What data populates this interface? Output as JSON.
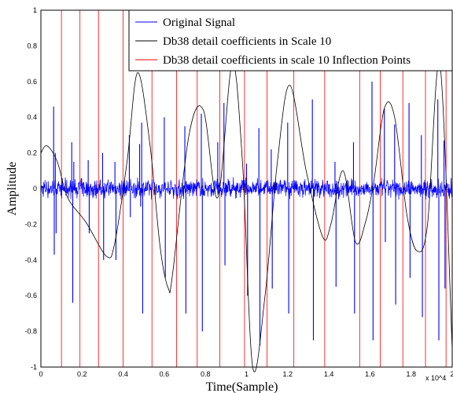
{
  "chart_data": {
    "type": "line",
    "xlabel": "Time(Sample)",
    "ylabel": "Amplitude",
    "x_exponent_label": "x 10^4",
    "xlim": [
      0,
      2
    ],
    "ylim": [
      -1,
      1
    ],
    "xticks": [
      "0",
      "0.2",
      "0.4",
      "0.6",
      "0.8",
      "1",
      "1.2",
      "1.4",
      "1.6",
      "1.8",
      "2"
    ],
    "yticks": [
      "-1",
      "-0.8",
      "-0.6",
      "-0.4",
      "-0.2",
      "0",
      "0.2",
      "0.4",
      "0.6",
      "0.8",
      "1"
    ],
    "grid": false,
    "legend_position": "top-right",
    "series": [
      {
        "name": "Original Signal",
        "color": "#0000ff",
        "style": "noisy spikes",
        "spikes": [
          [
            0.062,
            0.46
          ],
          [
            0.065,
            -0.37
          ],
          [
            0.07,
            0.2
          ],
          [
            0.074,
            -0.25
          ],
          [
            0.15,
            0.26
          ],
          [
            0.155,
            -0.64
          ],
          [
            0.16,
            0.15
          ],
          [
            0.23,
            0.16
          ],
          [
            0.235,
            -0.25
          ],
          [
            0.3,
            0.2
          ],
          [
            0.305,
            -0.4
          ],
          [
            0.36,
            0.15
          ],
          [
            0.365,
            -0.4
          ],
          [
            0.43,
            0.3
          ],
          [
            0.435,
            -0.16
          ],
          [
            0.48,
            0.25
          ],
          [
            0.485,
            -0.1
          ],
          [
            0.49,
            0.37
          ],
          [
            0.495,
            -0.7
          ],
          [
            0.6,
            0.4
          ],
          [
            0.605,
            -0.5
          ],
          [
            0.7,
            0.35
          ],
          [
            0.705,
            -0.7
          ],
          [
            0.78,
            0.42
          ],
          [
            0.785,
            -0.8
          ],
          [
            0.86,
            0.26
          ],
          [
            0.89,
            0.48
          ],
          [
            0.895,
            -0.43
          ],
          [
            1.0,
            0.14
          ],
          [
            1.005,
            -0.6
          ],
          [
            1.06,
            0.34
          ],
          [
            1.065,
            -0.88
          ],
          [
            1.12,
            0.22
          ],
          [
            1.125,
            -0.56
          ],
          [
            1.2,
            0.37
          ],
          [
            1.205,
            -0.7
          ],
          [
            1.32,
            0.5
          ],
          [
            1.325,
            -0.85
          ],
          [
            1.43,
            0.15
          ],
          [
            1.435,
            -0.55
          ],
          [
            1.52,
            0.26
          ],
          [
            1.525,
            -0.7
          ],
          [
            1.61,
            0.6
          ],
          [
            1.615,
            -0.85
          ],
          [
            1.67,
            0.45
          ],
          [
            1.675,
            -0.3
          ],
          [
            1.72,
            0.36
          ],
          [
            1.725,
            -0.65
          ],
          [
            1.79,
            0.48
          ],
          [
            1.795,
            -0.5
          ],
          [
            1.85,
            0.3
          ],
          [
            1.855,
            -0.72
          ],
          [
            1.93,
            0.5
          ],
          [
            1.935,
            -0.85
          ],
          [
            1.96,
            0.27
          ],
          [
            1.965,
            -0.56
          ]
        ],
        "noise_amplitude": 0.05
      },
      {
        "name": "Db38 detail coefficients in Scale 10",
        "color": "#000000",
        "x": [
          0,
          0.03,
          0.08,
          0.13,
          0.22,
          0.32,
          0.36,
          0.42,
          0.47,
          0.53,
          0.58,
          0.62,
          0.64,
          0.72,
          0.79,
          0.86,
          0.93,
          0.98,
          1.03,
          1.09,
          1.15,
          1.21,
          1.29,
          1.37,
          1.41,
          1.47,
          1.53,
          1.58,
          1.62,
          1.67,
          1.72,
          1.78,
          1.83,
          1.88,
          1.94,
          2.0
        ],
        "values": [
          0.2,
          0.24,
          0.15,
          -0.05,
          -0.19,
          -0.38,
          -0.3,
          0.16,
          0.65,
          0.25,
          -0.33,
          -0.56,
          -0.48,
          0.3,
          0.44,
          -0.05,
          0.7,
          0.15,
          -1.0,
          -0.6,
          0.15,
          0.58,
          0.1,
          -0.27,
          -0.2,
          0.1,
          -0.3,
          -0.18,
          0.05,
          0.45,
          0.4,
          -0.15,
          -0.35,
          -0.2,
          0.7,
          -0.9
        ]
      },
      {
        "name": "Db38 detail coefficients in scale 10 Inflection Points",
        "color": "#ff0000",
        "style": "vertical lines",
        "x": [
          0.1,
          0.19,
          0.28,
          0.4,
          0.54,
          0.66,
          0.76,
          0.87,
          0.99,
          1.1,
          1.23,
          1.38,
          1.55,
          1.65,
          1.76,
          1.87,
          1.97
        ]
      }
    ]
  }
}
